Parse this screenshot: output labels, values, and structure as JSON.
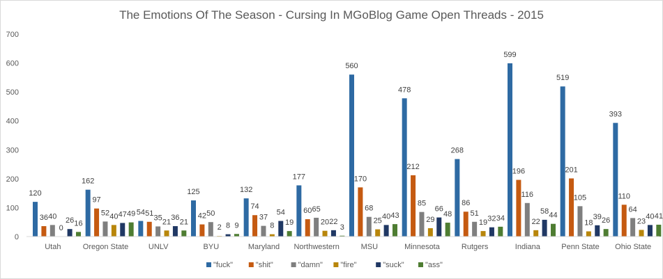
{
  "chart_data": {
    "type": "bar",
    "title": "The Emotions Of The Season - Cursing In MGoBlog Game Open Threads - 2015",
    "xlabel": "",
    "ylabel": "",
    "ylim": [
      0,
      700
    ],
    "yticks": [
      0,
      100,
      200,
      300,
      400,
      500,
      600,
      700
    ],
    "grid": false,
    "legend_position": "bottom",
    "categories": [
      "Utah",
      "Oregon State",
      "UNLV",
      "BYU",
      "Maryland",
      "Northwestern",
      "MSU",
      "Minnesota",
      "Rutgers",
      "Indiana",
      "Penn State",
      "Ohio State"
    ],
    "series": [
      {
        "name": "\"fuck\"",
        "color": "#2e6aa3",
        "values": [
          120,
          162,
          54,
          125,
          132,
          177,
          560,
          478,
          268,
          599,
          519,
          393
        ]
      },
      {
        "name": "\"shit\"",
        "color": "#c55a11",
        "values": [
          36,
          97,
          51,
          42,
          74,
          60,
          170,
          212,
          86,
          196,
          201,
          110
        ]
      },
      {
        "name": "\"damn\"",
        "color": "#7f7f7f",
        "values": [
          40,
          52,
          35,
          50,
          37,
          65,
          68,
          85,
          51,
          116,
          105,
          64
        ]
      },
      {
        "name": "\"fire\"",
        "color": "#b8860b",
        "values": [
          0,
          40,
          21,
          2,
          8,
          20,
          25,
          29,
          19,
          22,
          18,
          23
        ]
      },
      {
        "name": "\"suck\"",
        "color": "#203864",
        "values": [
          26,
          47,
          36,
          8,
          54,
          22,
          40,
          66,
          32,
          58,
          39,
          40
        ]
      },
      {
        "name": "\"ass\"",
        "color": "#4e7d32",
        "values": [
          16,
          49,
          21,
          9,
          19,
          3,
          43,
          48,
          34,
          44,
          26,
          41
        ]
      }
    ]
  }
}
